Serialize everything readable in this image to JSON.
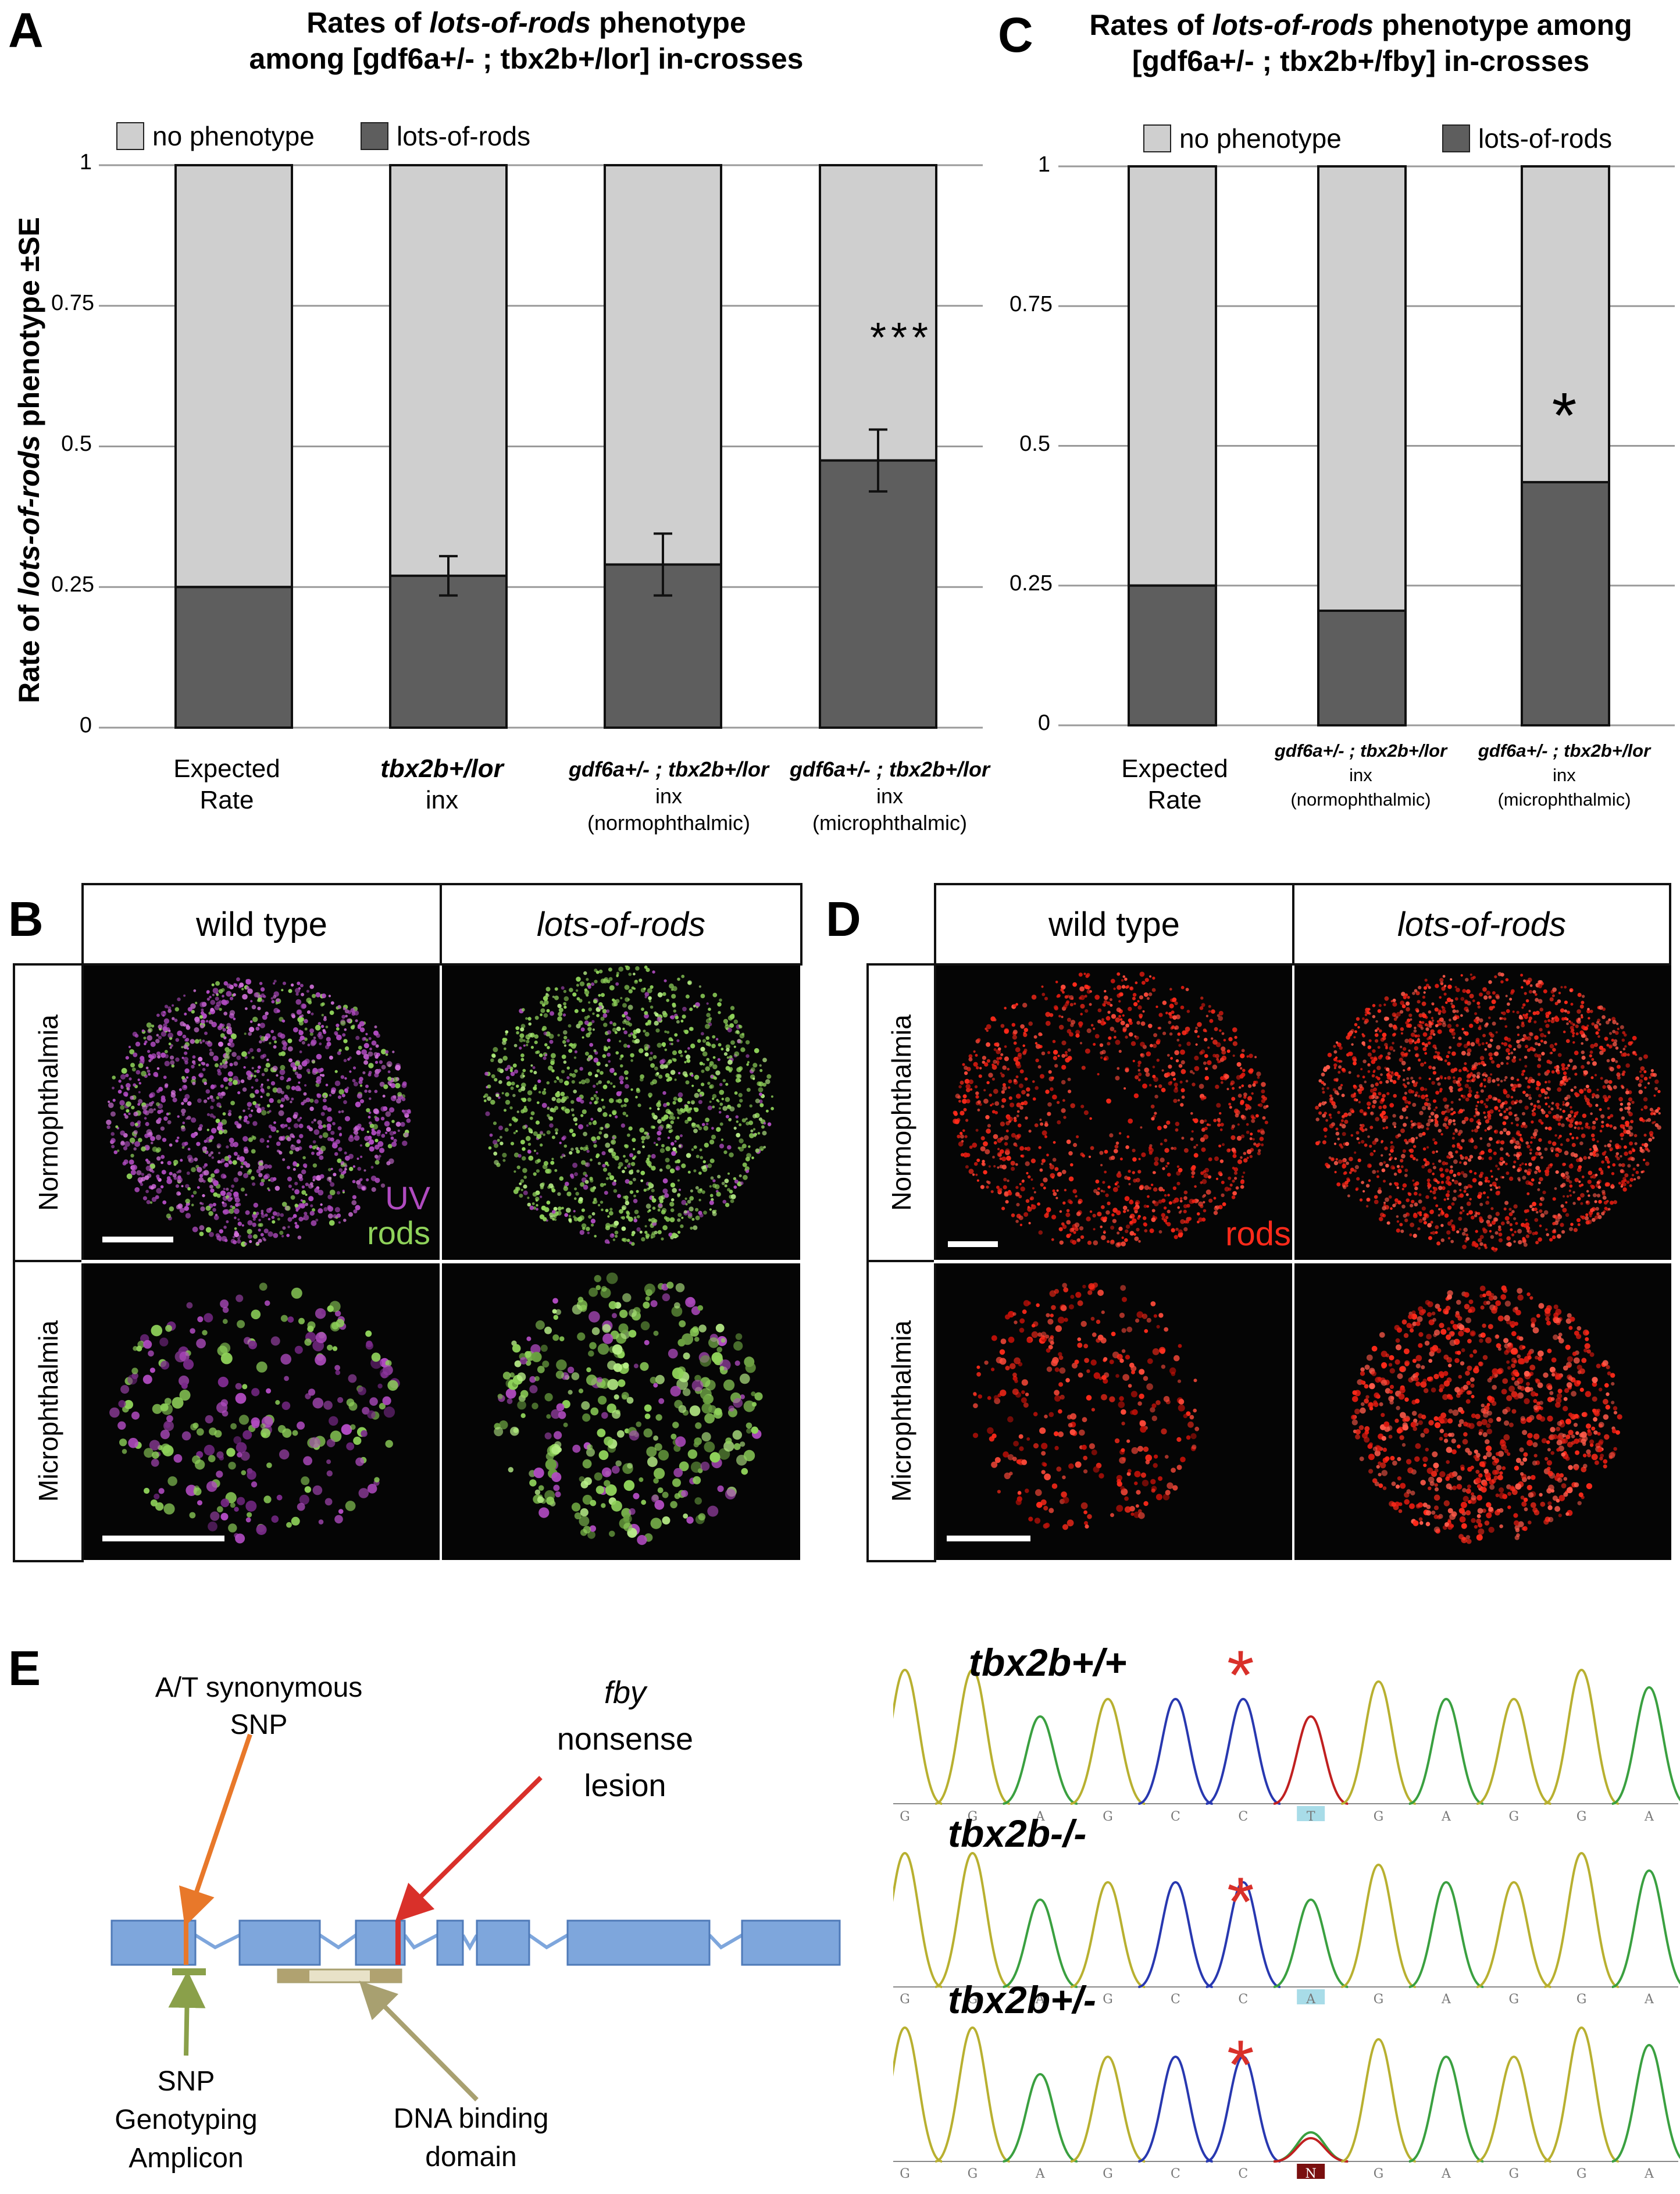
{
  "panel_letters": {
    "a": "A",
    "b": "B",
    "c": "C",
    "d": "D",
    "e": "E"
  },
  "panelA": {
    "title_l1_pre": "Rates of ",
    "title_l1_it": "lots-of-rods",
    "title_l1_post": " phenotype",
    "title_l2": "among [gdf6a+/- ; tbx2b+/lor] in-crosses",
    "legend_no": "no phenotype",
    "legend_lor": "lots-of-rods",
    "ylabel_pre": "Rate of ",
    "ylabel_it": "lots-of-rods",
    "ylabel_post": " phenotype ±SE",
    "ticks": [
      "0",
      "0.25",
      "0.5",
      "0.75",
      "1"
    ],
    "significance": "***",
    "cat1_l1": "Expected",
    "cat1_l2": "Rate",
    "cat2_l1": "tbx2b+/lor",
    "cat2_l2": "inx",
    "cat3_l1": "gdf6a+/- ; tbx2b+/lor",
    "cat3_l2": "inx",
    "cat3_l3": "(normophthalmic)",
    "cat4_l1": "gdf6a+/- ; tbx2b+/lor",
    "cat4_l2": "inx",
    "cat4_l3": "(microphthalmic)"
  },
  "panelC": {
    "title_l1_pre": "Rates of ",
    "title_l1_it": "lots-of-rods",
    "title_l1_post": " phenotype among",
    "title_l2": "[gdf6a+/- ; tbx2b+/fby] in-crosses",
    "legend_no": "no phenotype",
    "legend_lor": "lots-of-rods",
    "ticks": [
      "0",
      "0.25",
      "0.5",
      "0.75",
      "1"
    ],
    "significance": "*",
    "cat1_l1": "Expected",
    "cat1_l2": "Rate",
    "cat2_l1": "gdf6a+/- ; tbx2b+/lor",
    "cat2_l2": "inx",
    "cat2_l3": "(normophthalmic)",
    "cat3_l1": "gdf6a+/- ; tbx2b+/lor",
    "cat3_l2": "inx",
    "cat3_l3": "(microphthalmic)"
  },
  "chart_data": [
    {
      "type": "bar",
      "stacked": true,
      "title": "Rates of lots-of-rods phenotype among [gdf6a+/- ; tbx2b+/lor] in-crosses",
      "ylabel": "Rate of lots-of-rods phenotype ±SE",
      "ylim": [
        0,
        1
      ],
      "categories": [
        "Expected Rate",
        "tbx2b+/lor inx",
        "gdf6a+/- ; tbx2b+/lor inx (normophthalmic)",
        "gdf6a+/- ; tbx2b+/lor inx (microphthalmic)"
      ],
      "series": [
        {
          "name": "lots-of-rods",
          "values": [
            0.25,
            0.27,
            0.29,
            0.475
          ],
          "error": [
            null,
            0.035,
            0.055,
            0.055
          ]
        },
        {
          "name": "no phenotype",
          "values": [
            0.75,
            0.73,
            0.71,
            0.525
          ]
        }
      ],
      "legend": "top",
      "grid": true
    },
    {
      "type": "bar",
      "stacked": true,
      "title": "Rates of lots-of-rods phenotype among [gdf6a+/- ; tbx2b+/fby] in-crosses",
      "ylim": [
        0,
        1
      ],
      "categories": [
        "Expected Rate",
        "gdf6a+/- ; tbx2b+/lor inx (normophthalmic)",
        "gdf6a+/- ; tbx2b+/lor inx (microphthalmic)"
      ],
      "series": [
        {
          "name": "lots-of-rods",
          "values": [
            0.25,
            0.205,
            0.435
          ]
        },
        {
          "name": "no phenotype",
          "values": [
            0.75,
            0.795,
            0.565
          ]
        }
      ],
      "legend": "top",
      "grid": true
    }
  ],
  "panelB": {
    "col1": "wild type",
    "col2": "lots-of-rods",
    "row1": "Normophthalmia",
    "row2": "Microphthalmia",
    "label_uv": "UV",
    "label_rods": "rods",
    "colors": {
      "uv": "#b04bc0",
      "rods": "#8fd25a"
    }
  },
  "panelD": {
    "col1": "wild type",
    "col2": "lots-of-rods",
    "row1": "Normophthalmia",
    "row2": "Microphthalmia",
    "label_rods": "rods",
    "colors": {
      "rods": "#ff2a1a"
    }
  },
  "panelE": {
    "snp_l1": "A/T synonymous",
    "snp_l2": "SNP",
    "fby_l1": "fby",
    "fby_l2": "nonsense",
    "fby_l3": "lesion",
    "amp_l1": "SNP",
    "amp_l2": "Genotyping",
    "amp_l3": "Amplicon",
    "dbd_l1": "DNA binding",
    "dbd_l2": "domain",
    "traces": [
      {
        "genotype": "tbx2b+/+",
        "bases": [
          "G",
          "G",
          "A",
          "G",
          "C",
          "C",
          "T",
          "G",
          "A",
          "G",
          "G",
          "A"
        ],
        "call": "T"
      },
      {
        "genotype": "tbx2b-/-",
        "bases": [
          "G",
          "G",
          "A",
          "G",
          "C",
          "C",
          "A",
          "G",
          "A",
          "G",
          "G",
          "A"
        ],
        "call": "A"
      },
      {
        "genotype": "tbx2b+/-",
        "bases": [
          "G",
          "G",
          "A",
          "G",
          "C",
          "C",
          "N",
          "G",
          "A",
          "G",
          "G",
          "A"
        ],
        "call": "N"
      }
    ],
    "star": "*",
    "colors": {
      "exon": "#7ea6dc",
      "snp": "#e8782a",
      "lesion": "#d9302a",
      "amplicon": "#8aa04a",
      "dbd": "#b0a270",
      "G": "#b8b030",
      "A": "#3aa040",
      "T": "#c02020",
      "C": "#2838b0"
    }
  }
}
